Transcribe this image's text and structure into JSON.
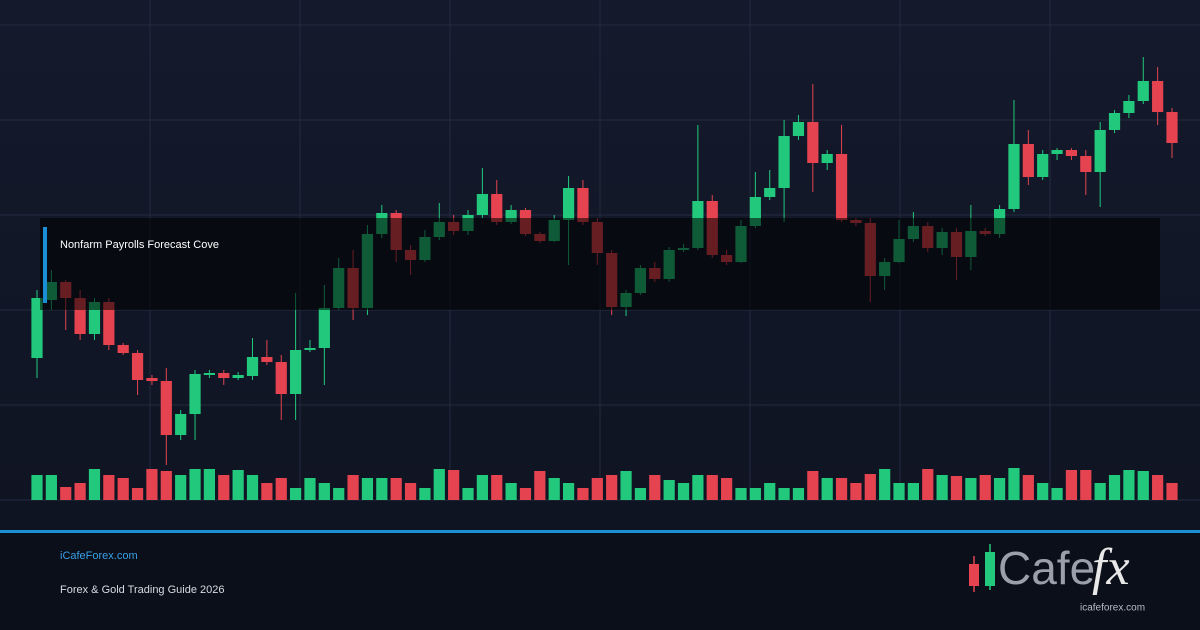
{
  "chart_data": {
    "type": "candlestick",
    "annotation": "Nonfarm Payrolls Forecast Cove",
    "up_color": "#22c97c",
    "down_color": "#e4434f",
    "ylim": [
      0,
      500
    ],
    "volume_ylim": [
      0,
      100
    ],
    "open": [
      142,
      200,
      218,
      202,
      166,
      198,
      155,
      147,
      122,
      119,
      65,
      86,
      125,
      127,
      122,
      124,
      143,
      138,
      106,
      150,
      152,
      192,
      232,
      192,
      266,
      287,
      250,
      240,
      263,
      278,
      269,
      285,
      306,
      278,
      290,
      266,
      259,
      280,
      312,
      278,
      247,
      193,
      207,
      232,
      221,
      250,
      252,
      299,
      245,
      238,
      274,
      303,
      312,
      364,
      378,
      337,
      346,
      280,
      277,
      224,
      238,
      261,
      274,
      252,
      268,
      243,
      269,
      266,
      291,
      356,
      323,
      346,
      350,
      344,
      328,
      370,
      387,
      399,
      419,
      388
    ],
    "high": [
      210,
      230,
      220,
      210,
      202,
      202,
      157,
      150,
      125,
      132,
      90,
      130,
      130,
      130,
      128,
      162,
      160,
      145,
      207,
      160,
      215,
      242,
      250,
      275,
      295,
      290,
      255,
      270,
      297,
      285,
      290,
      332,
      320,
      295,
      292,
      268,
      285,
      324,
      320,
      282,
      250,
      210,
      235,
      238,
      253,
      256,
      375,
      305,
      250,
      280,
      328,
      330,
      380,
      385,
      416,
      350,
      375,
      282,
      282,
      242,
      280,
      288,
      278,
      272,
      272,
      295,
      272,
      295,
      400,
      370,
      350,
      352,
      352,
      350,
      378,
      390,
      405,
      443,
      433,
      392
    ],
    "low": [
      122,
      190,
      170,
      160,
      160,
      150,
      145,
      105,
      115,
      35,
      60,
      60,
      122,
      115,
      120,
      120,
      135,
      80,
      80,
      148,
      115,
      190,
      180,
      185,
      262,
      238,
      225,
      238,
      260,
      265,
      265,
      282,
      275,
      276,
      264,
      257,
      258,
      235,
      275,
      235,
      185,
      184,
      205,
      218,
      218,
      248,
      250,
      242,
      235,
      237,
      272,
      300,
      278,
      360,
      308,
      330,
      278,
      274,
      198,
      210,
      237,
      258,
      248,
      245,
      220,
      230,
      264,
      262,
      288,
      315,
      320,
      340,
      340,
      305,
      293,
      367,
      382,
      396,
      375,
      342
    ],
    "close": [
      202,
      218,
      202,
      166,
      198,
      155,
      147,
      120,
      119,
      65,
      86,
      126,
      127,
      122,
      125,
      143,
      138,
      106,
      150,
      152,
      192,
      232,
      192,
      266,
      287,
      250,
      240,
      263,
      278,
      269,
      285,
      306,
      278,
      290,
      266,
      259,
      280,
      312,
      278,
      247,
      193,
      207,
      232,
      221,
      250,
      252,
      299,
      245,
      238,
      274,
      303,
      312,
      364,
      378,
      337,
      346,
      280,
      277,
      224,
      238,
      261,
      274,
      252,
      268,
      243,
      269,
      266,
      291,
      356,
      323,
      346,
      350,
      344,
      328,
      370,
      387,
      399,
      419,
      388,
      357
    ],
    "volume": [
      25,
      25,
      13,
      17,
      31,
      25,
      22,
      12,
      31,
      29,
      25,
      31,
      31,
      25,
      30,
      25,
      17,
      22,
      12,
      22,
      17,
      12,
      25,
      22,
      22,
      22,
      17,
      12,
      31,
      30,
      12,
      25,
      25,
      17,
      12,
      29,
      22,
      17,
      12,
      22,
      25,
      29,
      12,
      25,
      20,
      17,
      25,
      25,
      22,
      12,
      12,
      17,
      12,
      12,
      29,
      22,
      22,
      17,
      26,
      31,
      17,
      17,
      31,
      25,
      24,
      22,
      25,
      22,
      32,
      25,
      17,
      12,
      30,
      30,
      17,
      25,
      30,
      29,
      25,
      17
    ]
  },
  "footer": {
    "site": "iCafeForex.com",
    "subtitle": "Forex & Gold Trading Guide 2026",
    "logo": {
      "word": "Cafe",
      "accent": "fx",
      "url": "icafeforex.com"
    }
  }
}
